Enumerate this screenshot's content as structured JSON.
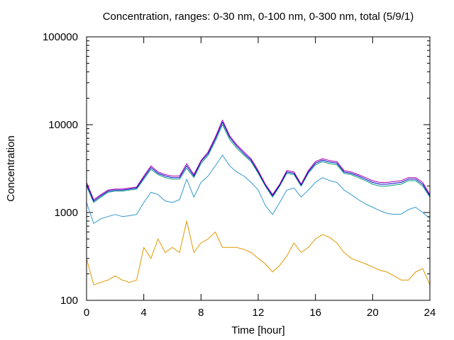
{
  "chart_data": {
    "type": "line",
    "title": "Concentration, ranges: 0-30 nm, 0-100 nm, 0-300 nm, total (5/9/1)",
    "xlabel": "Time [hour]",
    "ylabel": "Concentration",
    "xlim": [
      0,
      24
    ],
    "ylim": [
      100,
      100000
    ],
    "yscale": "log",
    "grid": false,
    "legend": "none",
    "x_ticks": [
      0,
      4,
      8,
      12,
      16,
      20,
      24
    ],
    "x_tick_labels": [
      "0",
      "4",
      "8",
      "12",
      "16",
      "20",
      "24"
    ],
    "y_ticks": [
      100,
      1000,
      10000,
      100000
    ],
    "y_tick_labels": [
      "100",
      "1000",
      "10000",
      "100000"
    ],
    "y_minor_ticks": [
      200,
      300,
      400,
      500,
      600,
      700,
      800,
      900,
      2000,
      3000,
      4000,
      5000,
      6000,
      7000,
      8000,
      9000,
      20000,
      30000,
      40000,
      50000,
      60000,
      70000,
      80000,
      90000
    ],
    "x": [
      0,
      0.5,
      1,
      1.5,
      2,
      2.5,
      3,
      3.5,
      4,
      4.5,
      5,
      5.5,
      6,
      6.5,
      7,
      7.5,
      8,
      8.5,
      9,
      9.5,
      10,
      10.5,
      11,
      11.5,
      12,
      12.5,
      13,
      13.5,
      14,
      14.5,
      15,
      15.5,
      16,
      16.5,
      17,
      17.5,
      18,
      18.5,
      19,
      19.5,
      20,
      20.5,
      21,
      21.5,
      22,
      22.5,
      23,
      23.5,
      24
    ],
    "series": [
      {
        "color": "#dd9900",
        "values": [
          300,
          150,
          160,
          170,
          190,
          170,
          160,
          170,
          400,
          300,
          500,
          350,
          400,
          350,
          800,
          350,
          450,
          500,
          600,
          400,
          400,
          400,
          380,
          350,
          300,
          260,
          210,
          250,
          320,
          450,
          350,
          400,
          500,
          560,
          520,
          450,
          350,
          300,
          280,
          260,
          240,
          220,
          210,
          190,
          170,
          170,
          210,
          230,
          150
        ]
      },
      {
        "color": "#3399cc",
        "values": [
          1300,
          750,
          850,
          900,
          950,
          900,
          920,
          950,
          1300,
          1700,
          1600,
          1350,
          1300,
          1400,
          2400,
          1500,
          2200,
          2600,
          3400,
          4500,
          3400,
          2900,
          2600,
          2200,
          1800,
          1200,
          950,
          1300,
          1800,
          1900,
          1500,
          1800,
          2200,
          2500,
          2300,
          2200,
          1800,
          1600,
          1400,
          1250,
          1150,
          1050,
          980,
          950,
          960,
          1080,
          1150,
          1000,
          850
        ]
      },
      {
        "color": "#009977",
        "values": [
          2000,
          1300,
          1500,
          1700,
          1750,
          1750,
          1800,
          1850,
          2400,
          3100,
          2700,
          2500,
          2400,
          2400,
          3200,
          2500,
          3600,
          4500,
          6500,
          10000,
          6800,
          5400,
          4500,
          3800,
          2800,
          2000,
          1500,
          2000,
          2800,
          2700,
          2000,
          2800,
          3500,
          3800,
          3600,
          3500,
          2800,
          2700,
          2500,
          2300,
          2100,
          2000,
          2000,
          2050,
          2100,
          2300,
          2300,
          2000,
          1500
        ]
      },
      {
        "color": "#0000cc",
        "values": [
          2100,
          1350,
          1550,
          1750,
          1800,
          1800,
          1850,
          1900,
          2500,
          3250,
          2800,
          2600,
          2500,
          2500,
          3400,
          2600,
          3800,
          4700,
          6900,
          10700,
          7200,
          5700,
          4700,
          3950,
          2900,
          2050,
          1550,
          2050,
          2900,
          2800,
          2050,
          2900,
          3650,
          3950,
          3750,
          3650,
          2900,
          2800,
          2600,
          2400,
          2200,
          2100,
          2100,
          2150,
          2200,
          2400,
          2400,
          2100,
          1550
        ]
      },
      {
        "color": "#aa00aa",
        "values": [
          2200,
          1400,
          1600,
          1800,
          1850,
          1850,
          1900,
          1950,
          2600,
          3400,
          2900,
          2700,
          2600,
          2600,
          3600,
          2700,
          3900,
          4900,
          7200,
          11300,
          7500,
          5900,
          4900,
          4100,
          3000,
          2100,
          1600,
          2100,
          3000,
          2900,
          2100,
          3000,
          3800,
          4100,
          3900,
          3800,
          3000,
          2900,
          2700,
          2500,
          2300,
          2200,
          2200,
          2250,
          2300,
          2500,
          2500,
          2200,
          1600
        ]
      }
    ]
  }
}
